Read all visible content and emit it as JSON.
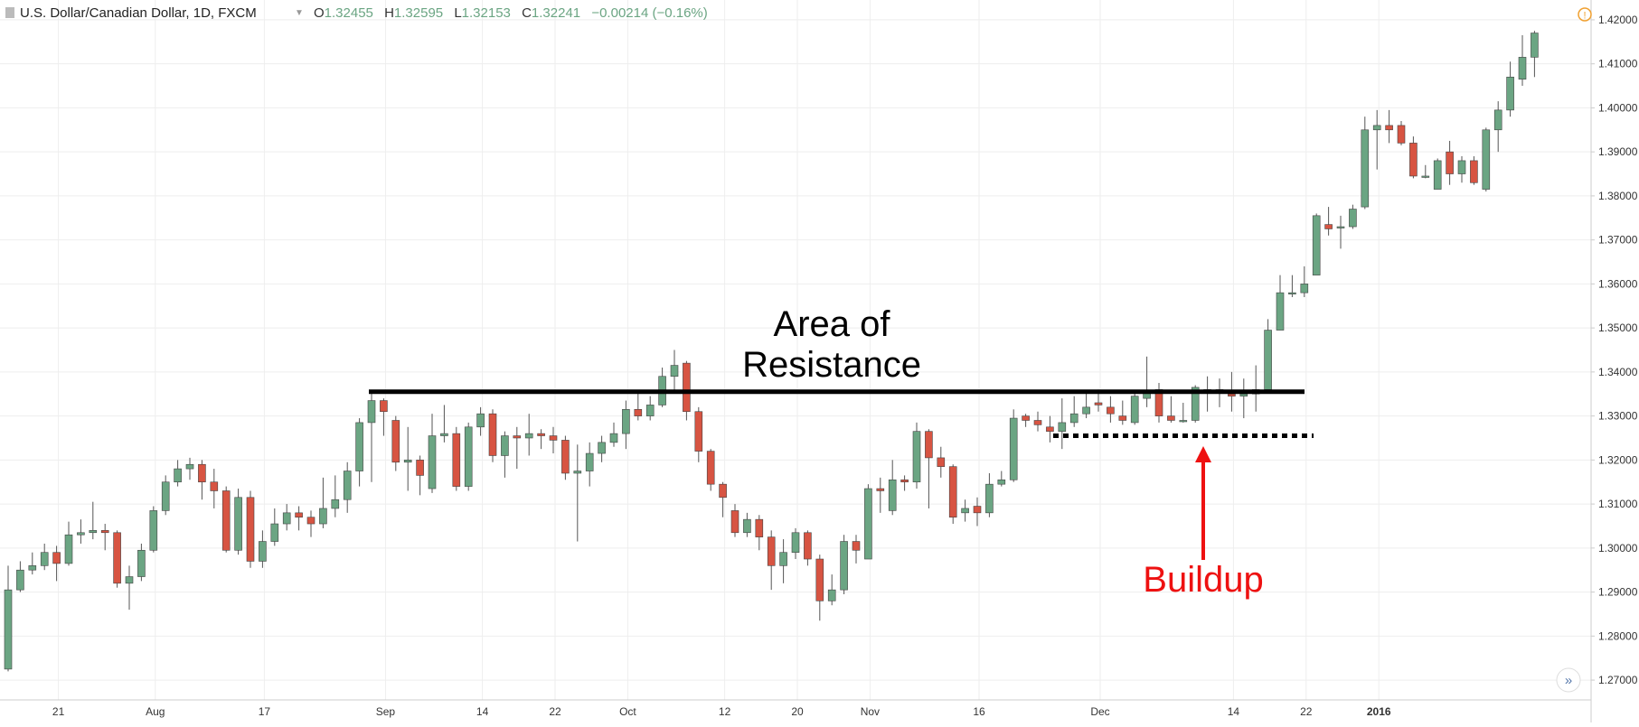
{
  "header": {
    "symbol": "U.S. Dollar/Canadian Dollar, 1D, FXCM",
    "open_label": "O",
    "open": "1.32455",
    "high_label": "H",
    "high": "1.32595",
    "low_label": "L",
    "low": "1.32153",
    "close_label": "C",
    "close": "1.32241",
    "change": "−0.00214 (−0.16%)",
    "alert_icon": "!"
  },
  "colors": {
    "up": "#6ba583",
    "down": "#d75442",
    "wick": "#555555",
    "grid": "#eeeeee",
    "axis": "#cccccc",
    "resistance": "#000000",
    "buildup": "#ee1111"
  },
  "chart_data": {
    "type": "candlestick",
    "title": "U.S. Dollar/Canadian Dollar, 1D, FXCM",
    "y_ticks": [
      "1.42000",
      "1.41000",
      "1.40000",
      "1.39000",
      "1.38000",
      "1.37000",
      "1.36000",
      "1.35000",
      "1.34000",
      "1.33000",
      "1.32000",
      "1.31000",
      "1.30000",
      "1.29000",
      "1.28000",
      "1.27000"
    ],
    "ylim": [
      1.2655,
      1.4245
    ],
    "x_ticks": [
      "21",
      "Aug",
      "17",
      "Sep",
      "14",
      "22",
      "Oct",
      "12",
      "20",
      "Nov",
      "16",
      "Dec",
      "14",
      "22",
      "2016"
    ],
    "candles": [
      [
        1.2725,
        1.2905,
        1.272,
        1.296
      ],
      [
        1.2905,
        1.295,
        1.29,
        1.297
      ],
      [
        1.295,
        1.296,
        1.294,
        1.299
      ],
      [
        1.296,
        1.299,
        1.295,
        1.301
      ],
      [
        1.299,
        1.2965,
        1.2925,
        1.3005
      ],
      [
        1.2965,
        1.303,
        1.296,
        1.306
      ],
      [
        1.303,
        1.3035,
        1.301,
        1.3065
      ],
      [
        1.3035,
        1.304,
        1.302,
        1.3105
      ],
      [
        1.304,
        1.3035,
        1.2995,
        1.3055
      ],
      [
        1.3035,
        1.292,
        1.291,
        1.304
      ],
      [
        1.292,
        1.2935,
        1.286,
        1.296
      ],
      [
        1.2935,
        1.2995,
        1.2925,
        1.301
      ],
      [
        1.2995,
        1.3085,
        1.299,
        1.3095
      ],
      [
        1.3085,
        1.315,
        1.3075,
        1.3165
      ],
      [
        1.315,
        1.318,
        1.314,
        1.32
      ],
      [
        1.318,
        1.319,
        1.3155,
        1.3205
      ],
      [
        1.319,
        1.315,
        1.311,
        1.32
      ],
      [
        1.315,
        1.313,
        1.309,
        1.318
      ],
      [
        1.313,
        1.2995,
        1.299,
        1.314
      ],
      [
        1.2995,
        1.3115,
        1.2985,
        1.3135
      ],
      [
        1.3115,
        1.297,
        1.2955,
        1.313
      ],
      [
        1.297,
        1.3015,
        1.2955,
        1.304
      ],
      [
        1.3015,
        1.3055,
        1.3005,
        1.309
      ],
      [
        1.3055,
        1.308,
        1.304,
        1.31
      ],
      [
        1.308,
        1.307,
        1.304,
        1.3095
      ],
      [
        1.307,
        1.3055,
        1.3025,
        1.3085
      ],
      [
        1.3055,
        1.309,
        1.3045,
        1.316
      ],
      [
        1.309,
        1.311,
        1.307,
        1.3165
      ],
      [
        1.311,
        1.3175,
        1.308,
        1.3195
      ],
      [
        1.3175,
        1.3285,
        1.314,
        1.3295
      ],
      [
        1.3285,
        1.3335,
        1.315,
        1.3355
      ],
      [
        1.3335,
        1.331,
        1.3255,
        1.334
      ],
      [
        1.329,
        1.3195,
        1.3175,
        1.33
      ],
      [
        1.3195,
        1.32,
        1.313,
        1.3275
      ],
      [
        1.32,
        1.3165,
        1.312,
        1.321
      ],
      [
        1.3135,
        1.3255,
        1.3125,
        1.3305
      ],
      [
        1.3255,
        1.326,
        1.324,
        1.3325
      ],
      [
        1.326,
        1.314,
        1.313,
        1.3275
      ],
      [
        1.314,
        1.3275,
        1.313,
        1.3285
      ],
      [
        1.3275,
        1.3305,
        1.3255,
        1.332
      ],
      [
        1.3305,
        1.321,
        1.3195,
        1.3315
      ],
      [
        1.321,
        1.3255,
        1.316,
        1.3265
      ],
      [
        1.3255,
        1.325,
        1.318,
        1.3275
      ],
      [
        1.325,
        1.326,
        1.321,
        1.3305
      ],
      [
        1.326,
        1.3255,
        1.3225,
        1.327
      ],
      [
        1.3255,
        1.3245,
        1.3215,
        1.3275
      ],
      [
        1.3245,
        1.317,
        1.3155,
        1.3255
      ],
      [
        1.317,
        1.3175,
        1.3015,
        1.3235
      ],
      [
        1.3175,
        1.3215,
        1.314,
        1.324
      ],
      [
        1.3215,
        1.324,
        1.3195,
        1.3255
      ],
      [
        1.324,
        1.326,
        1.323,
        1.3285
      ],
      [
        1.326,
        1.3315,
        1.3225,
        1.3335
      ],
      [
        1.3315,
        1.33,
        1.329,
        1.3355
      ],
      [
        1.33,
        1.3325,
        1.329,
        1.3345
      ],
      [
        1.3325,
        1.339,
        1.332,
        1.341
      ],
      [
        1.339,
        1.3415,
        1.3355,
        1.345
      ],
      [
        1.342,
        1.331,
        1.329,
        1.3425
      ],
      [
        1.331,
        1.322,
        1.3195,
        1.332
      ],
      [
        1.322,
        1.3145,
        1.313,
        1.3225
      ],
      [
        1.3145,
        1.3115,
        1.307,
        1.315
      ],
      [
        1.3085,
        1.3035,
        1.3025,
        1.31
      ],
      [
        1.3035,
        1.3065,
        1.3025,
        1.308
      ],
      [
        1.3065,
        1.3025,
        1.2995,
        1.3075
      ],
      [
        1.3025,
        1.296,
        1.2905,
        1.304
      ],
      [
        1.296,
        1.299,
        1.292,
        1.302
      ],
      [
        1.299,
        1.3035,
        1.2975,
        1.3045
      ],
      [
        1.3035,
        1.2975,
        1.296,
        1.304
      ],
      [
        1.2975,
        1.288,
        1.2835,
        1.2985
      ],
      [
        1.288,
        1.2905,
        1.287,
        1.294
      ],
      [
        1.2905,
        1.3015,
        1.2895,
        1.303
      ],
      [
        1.3015,
        1.2995,
        1.2965,
        1.303
      ],
      [
        1.2975,
        1.3135,
        1.2975,
        1.3145
      ],
      [
        1.3135,
        1.313,
        1.308,
        1.316
      ],
      [
        1.3085,
        1.3155,
        1.3075,
        1.32
      ],
      [
        1.3155,
        1.315,
        1.313,
        1.3165
      ],
      [
        1.315,
        1.3265,
        1.3135,
        1.3285
      ],
      [
        1.3265,
        1.3205,
        1.309,
        1.327
      ],
      [
        1.3205,
        1.3185,
        1.316,
        1.323
      ],
      [
        1.3185,
        1.307,
        1.3055,
        1.319
      ],
      [
        1.308,
        1.309,
        1.306,
        1.311
      ],
      [
        1.3095,
        1.308,
        1.305,
        1.3115
      ],
      [
        1.308,
        1.3145,
        1.307,
        1.317
      ],
      [
        1.3145,
        1.3155,
        1.314,
        1.3175
      ],
      [
        1.3155,
        1.3295,
        1.315,
        1.3315
      ],
      [
        1.33,
        1.329,
        1.3275,
        1.3305
      ],
      [
        1.329,
        1.328,
        1.3265,
        1.331
      ],
      [
        1.3275,
        1.3265,
        1.324,
        1.33
      ],
      [
        1.3265,
        1.3285,
        1.3225,
        1.334
      ],
      [
        1.3285,
        1.3305,
        1.3275,
        1.3345
      ],
      [
        1.3305,
        1.332,
        1.3295,
        1.3355
      ],
      [
        1.333,
        1.3325,
        1.331,
        1.336
      ],
      [
        1.332,
        1.3305,
        1.3285,
        1.3345
      ],
      [
        1.33,
        1.329,
        1.328,
        1.3335
      ],
      [
        1.3285,
        1.3345,
        1.328,
        1.3355
      ],
      [
        1.334,
        1.3355,
        1.332,
        1.3435
      ],
      [
        1.336,
        1.33,
        1.3285,
        1.3375
      ],
      [
        1.33,
        1.329,
        1.3285,
        1.3345
      ],
      [
        1.329,
        1.329,
        1.3285,
        1.333
      ],
      [
        1.329,
        1.3365,
        1.3285,
        1.337
      ],
      [
        1.336,
        1.336,
        1.331,
        1.339
      ],
      [
        1.336,
        1.3355,
        1.332,
        1.3385
      ],
      [
        1.335,
        1.3345,
        1.331,
        1.34
      ],
      [
        1.3345,
        1.335,
        1.3295,
        1.3385
      ],
      [
        1.335,
        1.336,
        1.331,
        1.3415
      ],
      [
        1.336,
        1.3495,
        1.3355,
        1.352
      ],
      [
        1.3495,
        1.358,
        1.3495,
        1.362
      ],
      [
        1.358,
        1.358,
        1.357,
        1.362
      ],
      [
        1.358,
        1.36,
        1.357,
        1.364
      ],
      [
        1.362,
        1.3755,
        1.362,
        1.376
      ],
      [
        1.3735,
        1.3725,
        1.371,
        1.3775
      ],
      [
        1.373,
        1.373,
        1.368,
        1.3755
      ],
      [
        1.373,
        1.377,
        1.3725,
        1.378
      ],
      [
        1.3775,
        1.395,
        1.377,
        1.398
      ],
      [
        1.395,
        1.396,
        1.386,
        1.3995
      ],
      [
        1.396,
        1.395,
        1.392,
        1.3995
      ],
      [
        1.396,
        1.392,
        1.3915,
        1.397
      ],
      [
        1.392,
        1.3845,
        1.384,
        1.3935
      ],
      [
        1.3845,
        1.3845,
        1.384,
        1.387
      ],
      [
        1.3815,
        1.388,
        1.3815,
        1.3885
      ],
      [
        1.39,
        1.385,
        1.3825,
        1.3925
      ],
      [
        1.385,
        1.388,
        1.383,
        1.389
      ],
      [
        1.388,
        1.383,
        1.3825,
        1.389
      ],
      [
        1.3815,
        1.395,
        1.381,
        1.3955
      ],
      [
        1.395,
        1.3995,
        1.39,
        1.4015
      ],
      [
        1.3995,
        1.407,
        1.398,
        1.4105
      ],
      [
        1.4065,
        1.4115,
        1.405,
        1.4165
      ],
      [
        1.4115,
        1.417,
        1.407,
        1.4175
      ]
    ],
    "annotations": {
      "resistance_level": 1.3355,
      "resistance_label_lines": [
        "Area of",
        "Resistance"
      ],
      "buildup_level": 1.3255,
      "buildup_label": "Buildup"
    }
  }
}
